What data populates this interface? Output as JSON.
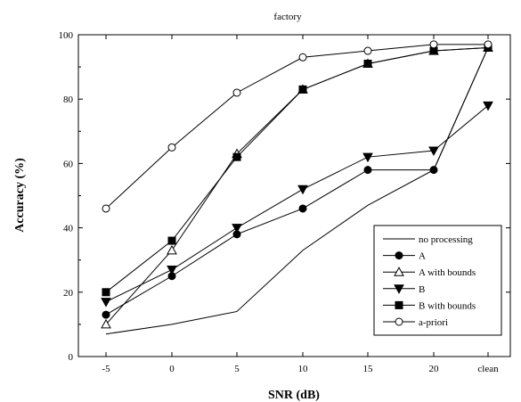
{
  "chart_data": {
    "type": "line",
    "title": "factory",
    "xlabel": "SNR (dB)",
    "ylabel": "Accuracy (%)",
    "categories": [
      "-5",
      "0",
      "5",
      "10",
      "15",
      "20",
      "clean"
    ],
    "ylim": [
      0,
      100
    ],
    "yticks": [
      0,
      20,
      40,
      60,
      80,
      100
    ],
    "grid": false,
    "legend_position": "bottom-right",
    "series": [
      {
        "name": "no processing",
        "marker": "none",
        "values": [
          7,
          10,
          14,
          33,
          47,
          58,
          96
        ]
      },
      {
        "name": "A",
        "marker": "circle-filled",
        "values": [
          13,
          25,
          38,
          46,
          58,
          58,
          96
        ]
      },
      {
        "name": "A with bounds",
        "marker": "triangle-up-open",
        "values": [
          10,
          33,
          63,
          83,
          91,
          95,
          96
        ]
      },
      {
        "name": "B",
        "marker": "triangle-down-filled",
        "values": [
          17,
          27,
          40,
          52,
          62,
          64,
          78
        ]
      },
      {
        "name": "B with bounds",
        "marker": "square-filled",
        "values": [
          20,
          36,
          62,
          83,
          91,
          95,
          96
        ]
      },
      {
        "name": "a-priori",
        "marker": "circle-open",
        "values": [
          46,
          65,
          82,
          93,
          95,
          97,
          97
        ]
      }
    ]
  }
}
